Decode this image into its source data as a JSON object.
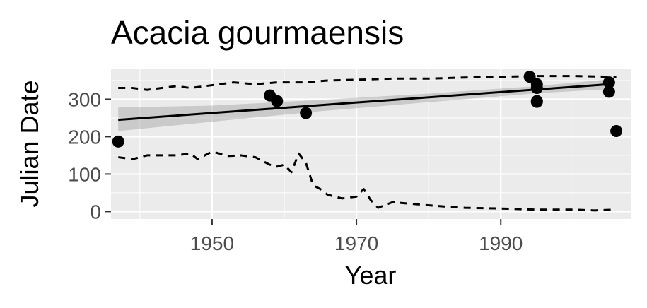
{
  "chart_data": {
    "type": "scatter",
    "title": "Acacia gourmaensis",
    "xlabel": "Year",
    "ylabel": "Julian Date",
    "xlim": [
      1936,
      2008
    ],
    "ylim": [
      -20,
      382
    ],
    "x_ticks": [
      1950,
      1970,
      1990
    ],
    "y_ticks": [
      0,
      100,
      200,
      300
    ],
    "x_tick_labels": [
      "1950",
      "1970",
      "1990"
    ],
    "y_tick_labels": [
      "0",
      "100",
      "200",
      "300"
    ],
    "grid": true,
    "panel_background": "#ebebeb",
    "grid_color": "#ffffff",
    "point_color": "#000000",
    "series": [
      {
        "kind": "points",
        "points": [
          [
            1937.0,
            187
          ],
          [
            1958.0,
            310
          ],
          [
            1959.0,
            295
          ],
          [
            1963.0,
            263
          ],
          [
            1994.0,
            360
          ],
          [
            1995.0,
            340
          ],
          [
            1995.0,
            330
          ],
          [
            1995.0,
            295
          ],
          [
            1995.0,
            293
          ],
          [
            2005.0,
            345
          ],
          [
            2005.0,
            320
          ],
          [
            2006.0,
            215
          ]
        ]
      },
      {
        "kind": "trend_line",
        "x": [
          1937,
          2005
        ],
        "y": [
          245,
          340
        ]
      },
      {
        "kind": "confidence_band",
        "x": [
          1937,
          1950,
          1965,
          1980,
          1995,
          2005
        ],
        "upper": [
          278,
          283,
          298,
          315,
          335,
          353
        ],
        "lower": [
          215,
          240,
          268,
          292,
          316,
          327
        ]
      },
      {
        "kind": "dashed_upper",
        "x": [
          1937,
          1939,
          1941,
          1945,
          1947,
          1949,
          1951,
          1953,
          1956,
          1959,
          1961,
          1963,
          1966,
          1970,
          1975,
          1980,
          1985,
          1990,
          1995,
          2000,
          2005,
          2006
        ],
        "y": [
          330,
          330,
          325,
          335,
          330,
          335,
          340,
          345,
          340,
          345,
          345,
          345,
          350,
          352,
          355,
          355,
          358,
          360,
          362,
          362,
          360,
          360
        ]
      },
      {
        "kind": "dashed_lower",
        "x": [
          1937,
          1939,
          1941,
          1943,
          1945,
          1947,
          1948,
          1950,
          1951,
          1952,
          1954,
          1956,
          1958,
          1959,
          1960,
          1961,
          1962,
          1963,
          1964,
          1965,
          1966,
          1968,
          1970,
          1971,
          1972,
          1973,
          1975,
          1978,
          1981,
          1985,
          1990,
          1995,
          2000,
          2003,
          2006
        ],
        "y": [
          145,
          140,
          150,
          150,
          150,
          155,
          140,
          160,
          155,
          148,
          150,
          145,
          125,
          120,
          125,
          105,
          155,
          130,
          70,
          60,
          45,
          35,
          40,
          60,
          30,
          10,
          25,
          20,
          15,
          10,
          8,
          5,
          5,
          3,
          5
        ]
      }
    ]
  }
}
